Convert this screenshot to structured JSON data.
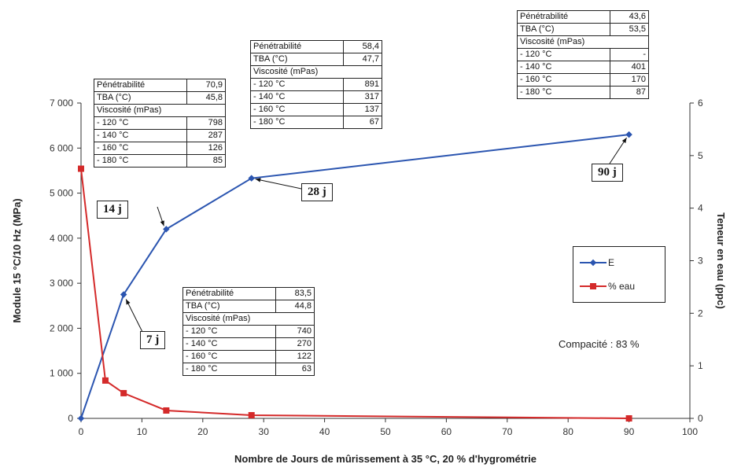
{
  "chart_data": {
    "type": "line",
    "xlabel": "Nombre de Jours de mûrissement à 35 °C, 20 % d'hygrométrie",
    "ylabel": "Module 15 °C/10 Hz (MPa)",
    "y2label": "Teneur en eau (ppc)",
    "xlim": [
      0,
      100
    ],
    "ylim": [
      0,
      7000
    ],
    "y2lim": [
      0,
      6
    ],
    "x_ticks": [
      "0",
      "10",
      "20",
      "30",
      "40",
      "50",
      "60",
      "70",
      "80",
      "90",
      "100"
    ],
    "y_ticks": [
      "0",
      "1 000",
      "2 000",
      "3 000",
      "4 000",
      "5 000",
      "6 000",
      "7 000"
    ],
    "y2_ticks": [
      "0",
      "1",
      "2",
      "3",
      "4",
      "5",
      "6"
    ],
    "series": [
      {
        "name": "E",
        "axis": "left",
        "color": "#2b55b0",
        "marker": "diamond",
        "x": [
          0,
          7,
          14,
          28,
          90
        ],
        "y": [
          0,
          2750,
          4200,
          5330,
          6300
        ]
      },
      {
        "name": "% eau",
        "axis": "right",
        "color": "#d42a2a",
        "marker": "square",
        "x": [
          0,
          4,
          7,
          14,
          28,
          90
        ],
        "y": [
          4.75,
          0.72,
          0.48,
          0.15,
          0.06,
          0.0
        ]
      }
    ],
    "legend": [
      "E",
      "% eau"
    ],
    "legend_position": "right",
    "annotation": "Compacité : 83 %",
    "day_labels": [
      "7 j",
      "14 j",
      "28 j",
      "90 j"
    ],
    "tables": [
      {
        "id": "t14",
        "rows": [
          {
            "label": "Pénétrabilité",
            "value": "70,9"
          },
          {
            "label": "TBA (°C)",
            "value": "45,8"
          },
          {
            "label": "Viscosité (mPas)",
            "value": ""
          },
          {
            "label": "- 120 °C",
            "value": "798"
          },
          {
            "label": "- 140 °C",
            "value": "287"
          },
          {
            "label": "- 160 °C",
            "value": "126"
          },
          {
            "label": "- 180 °C",
            "value": "85"
          }
        ]
      },
      {
        "id": "t28",
        "rows": [
          {
            "label": "Pénétrabilité",
            "value": "58,4"
          },
          {
            "label": "TBA (°C)",
            "value": "47,7"
          },
          {
            "label": "Viscosité (mPas)",
            "value": ""
          },
          {
            "label": "- 120 °C",
            "value": "891"
          },
          {
            "label": "- 140 °C",
            "value": "317"
          },
          {
            "label": "- 160 °C",
            "value": "137"
          },
          {
            "label": "- 180 °C",
            "value": "67"
          }
        ]
      },
      {
        "id": "t90",
        "rows": [
          {
            "label": "Pénétrabilité",
            "value": "43,6"
          },
          {
            "label": "TBA (°C)",
            "value": "53,5"
          },
          {
            "label": "Viscosité (mPas)",
            "value": ""
          },
          {
            "label": "- 120 °C",
            "value": "-"
          },
          {
            "label": "- 140 °C",
            "value": "401"
          },
          {
            "label": "- 160 °C",
            "value": "170"
          },
          {
            "label": "- 180 °C",
            "value": "87"
          }
        ]
      },
      {
        "id": "t7",
        "rows": [
          {
            "label": "Pénétrabilité",
            "value": "83,5"
          },
          {
            "label": "TBA (°C)",
            "value": "44,8"
          },
          {
            "label": "Viscosité (mPas)",
            "value": ""
          },
          {
            "label": "- 120 °C",
            "value": "740"
          },
          {
            "label": "- 140 °C",
            "value": "270"
          },
          {
            "label": "- 160 °C",
            "value": "122"
          },
          {
            "label": "- 180 °C",
            "value": "63"
          }
        ]
      }
    ]
  }
}
